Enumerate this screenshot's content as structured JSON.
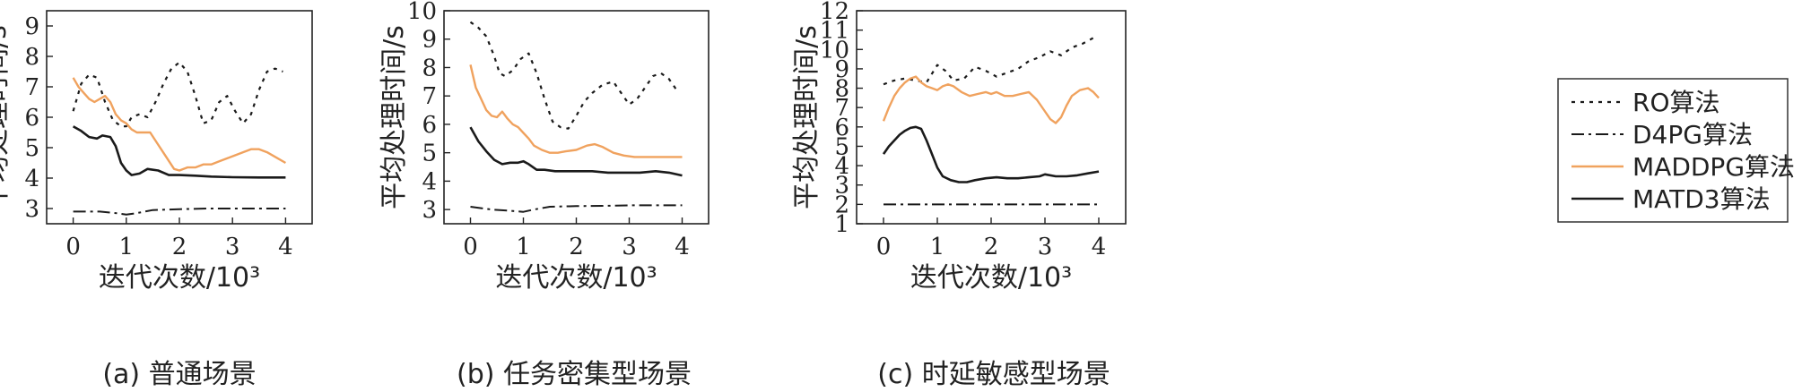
{
  "legend": {
    "items": [
      {
        "label": "RO算法",
        "color": "#1a1a1a",
        "dash": "4 6",
        "width": 2.2
      },
      {
        "label": "D4PG算法",
        "color": "#1a1a1a",
        "dash": "14 5 3 5",
        "width": 2
      },
      {
        "label": "MADDPG算法",
        "color": "#f0a25e",
        "dash": "",
        "width": 2.4
      },
      {
        "label": "MATD3算法",
        "color": "#1a1a1a",
        "dash": "",
        "width": 2.6
      }
    ]
  },
  "chart_data": [
    {
      "type": "line",
      "caption": "(a) 普通场景",
      "xlabel": "迭代次数/10³",
      "ylabel": "平均处理时间/s",
      "xlim": [
        -0.5,
        4.5
      ],
      "ylim": [
        2.5,
        9.5
      ],
      "xticks": [
        0,
        1,
        2,
        3,
        4
      ],
      "yticks": [
        3,
        4,
        5,
        6,
        7,
        8,
        9
      ],
      "series": [
        {
          "name": "RO算法",
          "x": [
            0,
            0.15,
            0.3,
            0.45,
            0.6,
            0.75,
            0.9,
            1.0,
            1.1,
            1.25,
            1.4,
            1.55,
            1.7,
            1.85,
            2.0,
            2.15,
            2.3,
            2.45,
            2.6,
            2.75,
            2.9,
            3.05,
            3.2,
            3.35,
            3.5,
            3.65,
            3.8,
            3.95
          ],
          "y": [
            6.2,
            7.1,
            7.4,
            7.3,
            6.5,
            5.9,
            5.7,
            5.7,
            6.0,
            6.1,
            6.0,
            6.5,
            7.1,
            7.6,
            7.8,
            7.5,
            6.7,
            5.8,
            5.9,
            6.5,
            6.7,
            6.2,
            5.8,
            6.1,
            6.9,
            7.5,
            7.6,
            7.5
          ]
        },
        {
          "name": "D4PG算法",
          "x": [
            0,
            0.5,
            0.8,
            1.0,
            1.2,
            1.5,
            2.0,
            2.5,
            3.0,
            3.5,
            4.0
          ],
          "y": [
            2.9,
            2.9,
            2.85,
            2.8,
            2.85,
            2.95,
            2.98,
            3.0,
            3.0,
            3.0,
            3.0
          ]
        },
        {
          "name": "MADDPG算法",
          "x": [
            0,
            0.1,
            0.2,
            0.3,
            0.4,
            0.5,
            0.6,
            0.7,
            0.8,
            0.9,
            1.0,
            1.1,
            1.2,
            1.3,
            1.45,
            1.6,
            1.75,
            1.9,
            2.0,
            2.15,
            2.3,
            2.45,
            2.6,
            2.75,
            2.9,
            3.05,
            3.2,
            3.35,
            3.5,
            3.65,
            3.8,
            4.0
          ],
          "y": [
            7.3,
            7.0,
            6.8,
            6.6,
            6.5,
            6.6,
            6.7,
            6.5,
            6.1,
            5.9,
            5.8,
            5.6,
            5.5,
            5.5,
            5.5,
            5.1,
            4.7,
            4.3,
            4.25,
            4.35,
            4.35,
            4.45,
            4.45,
            4.55,
            4.65,
            4.75,
            4.85,
            4.95,
            4.95,
            4.85,
            4.7,
            4.5
          ]
        },
        {
          "name": "MATD3算法",
          "x": [
            0,
            0.15,
            0.3,
            0.45,
            0.55,
            0.7,
            0.8,
            0.9,
            1.0,
            1.1,
            1.25,
            1.4,
            1.6,
            1.8,
            2.0,
            2.3,
            2.6,
            3.0,
            3.5,
            4.0
          ],
          "y": [
            5.7,
            5.55,
            5.35,
            5.3,
            5.4,
            5.35,
            5.05,
            4.5,
            4.25,
            4.1,
            4.15,
            4.3,
            4.25,
            4.1,
            4.1,
            4.08,
            4.05,
            4.03,
            4.02,
            4.02
          ]
        }
      ]
    },
    {
      "type": "line",
      "caption": "(b) 任务密集型场景",
      "xlabel": "迭代次数/10³",
      "ylabel": "平均处理时间/s",
      "xlim": [
        -0.5,
        4.5
      ],
      "ylim": [
        2.5,
        10
      ],
      "xticks": [
        0,
        1,
        2,
        3,
        4
      ],
      "yticks": [
        3,
        4,
        5,
        6,
        7,
        8,
        9,
        10
      ],
      "series": [
        {
          "name": "RO算法",
          "x": [
            0,
            0.15,
            0.3,
            0.45,
            0.55,
            0.65,
            0.8,
            0.95,
            1.1,
            1.25,
            1.4,
            1.55,
            1.7,
            1.85,
            2.0,
            2.15,
            2.3,
            2.5,
            2.7,
            2.85,
            3.0,
            3.15,
            3.3,
            3.45,
            3.6,
            3.75,
            3.9
          ],
          "y": [
            9.6,
            9.4,
            9.1,
            8.4,
            7.8,
            7.7,
            7.9,
            8.3,
            8.5,
            7.8,
            6.9,
            6.1,
            5.9,
            5.85,
            6.3,
            6.8,
            7.1,
            7.4,
            7.5,
            7.1,
            6.7,
            6.9,
            7.3,
            7.7,
            7.8,
            7.6,
            7.2
          ]
        },
        {
          "name": "D4PG算法",
          "x": [
            0,
            0.4,
            0.8,
            1.0,
            1.2,
            1.5,
            2.0,
            2.5,
            3.0,
            3.5,
            4.0
          ],
          "y": [
            3.1,
            3.0,
            2.95,
            2.92,
            3.0,
            3.1,
            3.12,
            3.13,
            3.15,
            3.15,
            3.15
          ]
        },
        {
          "name": "MADDPG算法",
          "x": [
            0,
            0.1,
            0.2,
            0.3,
            0.4,
            0.5,
            0.6,
            0.7,
            0.8,
            0.9,
            1.0,
            1.1,
            1.2,
            1.35,
            1.5,
            1.65,
            1.8,
            2.0,
            2.2,
            2.35,
            2.5,
            2.7,
            2.9,
            3.1,
            3.3,
            3.5,
            3.7,
            4.0
          ],
          "y": [
            8.1,
            7.3,
            6.9,
            6.5,
            6.3,
            6.25,
            6.45,
            6.2,
            6.0,
            5.9,
            5.7,
            5.5,
            5.25,
            5.1,
            5.0,
            5.0,
            5.05,
            5.1,
            5.25,
            5.3,
            5.2,
            5.0,
            4.9,
            4.85,
            4.85,
            4.85,
            4.85,
            4.85
          ]
        },
        {
          "name": "MATD3算法",
          "x": [
            0,
            0.15,
            0.3,
            0.45,
            0.6,
            0.75,
            0.9,
            1.0,
            1.1,
            1.25,
            1.4,
            1.6,
            1.8,
            2.0,
            2.3,
            2.6,
            2.9,
            3.2,
            3.5,
            3.75,
            4.0
          ],
          "y": [
            5.9,
            5.4,
            5.05,
            4.75,
            4.6,
            4.65,
            4.65,
            4.7,
            4.6,
            4.4,
            4.4,
            4.35,
            4.35,
            4.35,
            4.35,
            4.3,
            4.3,
            4.3,
            4.35,
            4.3,
            4.2
          ]
        }
      ]
    },
    {
      "type": "line",
      "caption": "(c) 时延敏感型场景",
      "xlabel": "迭代次数/10³",
      "ylabel": "平均处理时间/s",
      "xlim": [
        -0.5,
        4.5
      ],
      "ylim": [
        1,
        12
      ],
      "xticks": [
        0,
        1,
        2,
        3,
        4
      ],
      "yticks": [
        1,
        2,
        3,
        4,
        5,
        6,
        7,
        8,
        9,
        10,
        11,
        12
      ],
      "series": [
        {
          "name": "RO算法",
          "x": [
            0,
            0.2,
            0.4,
            0.6,
            0.8,
            1.0,
            1.15,
            1.3,
            1.5,
            1.7,
            1.9,
            2.1,
            2.3,
            2.5,
            2.7,
            2.9,
            3.1,
            3.3,
            3.5,
            3.7,
            3.9
          ],
          "y": [
            8.2,
            8.4,
            8.5,
            8.4,
            8.3,
            9.2,
            8.9,
            8.4,
            8.5,
            9.1,
            8.9,
            8.6,
            8.8,
            9.0,
            9.4,
            9.6,
            9.9,
            9.7,
            10.1,
            10.3,
            10.6
          ]
        },
        {
          "name": "D4PG算法",
          "x": [
            0,
            1,
            2,
            3,
            4
          ],
          "y": [
            2.0,
            2.0,
            2.0,
            2.0,
            2.0
          ]
        },
        {
          "name": "MADDPG算法",
          "x": [
            0,
            0.1,
            0.2,
            0.3,
            0.4,
            0.5,
            0.6,
            0.7,
            0.8,
            0.9,
            1.0,
            1.1,
            1.2,
            1.3,
            1.45,
            1.6,
            1.75,
            1.9,
            2.0,
            2.1,
            2.25,
            2.4,
            2.55,
            2.7,
            2.85,
            3.0,
            3.1,
            3.2,
            3.3,
            3.4,
            3.5,
            3.65,
            3.8,
            3.9,
            4.0
          ],
          "y": [
            6.3,
            7.0,
            7.6,
            8.0,
            8.3,
            8.5,
            8.6,
            8.3,
            8.1,
            8.0,
            7.9,
            8.1,
            8.2,
            8.1,
            7.8,
            7.6,
            7.7,
            7.8,
            7.7,
            7.8,
            7.6,
            7.6,
            7.7,
            7.8,
            7.4,
            6.8,
            6.4,
            6.2,
            6.5,
            7.1,
            7.6,
            7.9,
            8.0,
            7.8,
            7.5
          ]
        },
        {
          "name": "MATD3算法",
          "x": [
            0,
            0.1,
            0.2,
            0.3,
            0.4,
            0.5,
            0.6,
            0.7,
            0.8,
            0.9,
            1.0,
            1.1,
            1.25,
            1.4,
            1.55,
            1.7,
            1.9,
            2.1,
            2.3,
            2.5,
            2.7,
            2.9,
            3.0,
            3.2,
            3.4,
            3.6,
            3.8,
            4.0
          ],
          "y": [
            4.6,
            5.0,
            5.3,
            5.6,
            5.8,
            5.95,
            6.0,
            5.9,
            5.3,
            4.6,
            3.9,
            3.45,
            3.25,
            3.15,
            3.15,
            3.25,
            3.35,
            3.4,
            3.35,
            3.35,
            3.4,
            3.45,
            3.55,
            3.45,
            3.45,
            3.5,
            3.6,
            3.7
          ]
        }
      ]
    }
  ]
}
